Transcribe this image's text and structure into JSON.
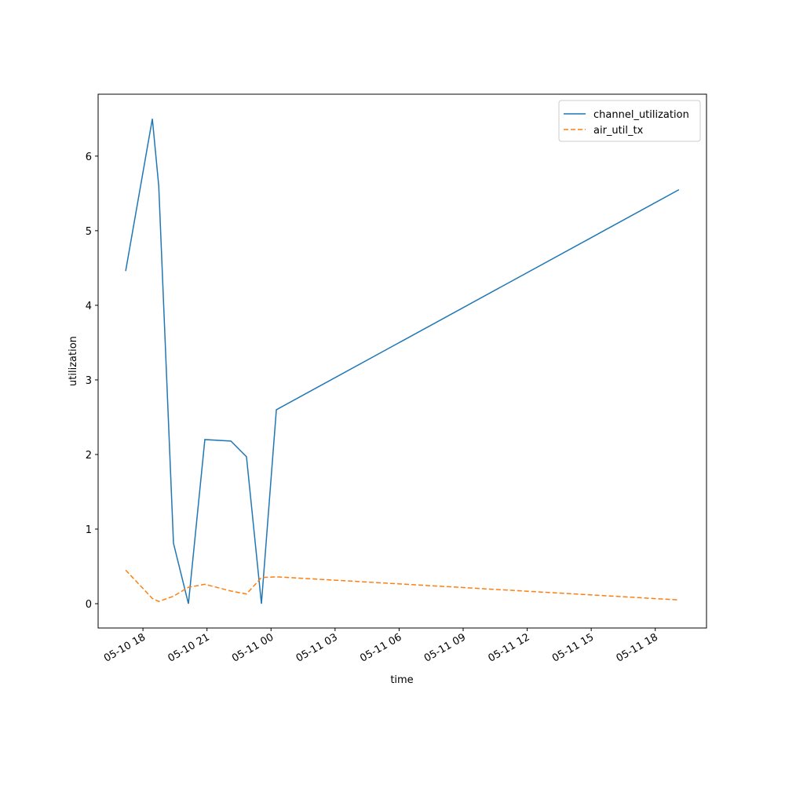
{
  "chart_data": {
    "type": "line",
    "x_label": "time",
    "y_label": "utilization",
    "x": [
      17.19,
      18.44,
      18.74,
      19.43,
      20.13,
      20.9,
      22.12,
      22.85,
      23.55,
      24.25,
      43.11
    ],
    "series": [
      {
        "name": "channel_utilization",
        "color": "#1f77b4",
        "dash": "solid",
        "values": [
          4.46,
          6.5,
          5.6,
          0.81,
          0.0,
          2.2,
          2.18,
          1.97,
          0.0,
          2.6,
          5.55
        ]
      },
      {
        "name": "air_util_tx",
        "color": "#ff7f0e",
        "dash": "dashed",
        "values": [
          0.45,
          0.07,
          0.03,
          0.1,
          0.22,
          0.26,
          0.17,
          0.13,
          0.35,
          0.36,
          0.05
        ]
      }
    ],
    "xlim": [
      15.9,
      44.4
    ],
    "xticks": [
      {
        "value": 18,
        "label": "05-10 18"
      },
      {
        "value": 21,
        "label": "05-10 21"
      },
      {
        "value": 24,
        "label": "05-11 00"
      },
      {
        "value": 27,
        "label": "05-11 03"
      },
      {
        "value": 30,
        "label": "05-11 06"
      },
      {
        "value": 33,
        "label": "05-11 09"
      },
      {
        "value": 36,
        "label": "05-11 12"
      },
      {
        "value": 39,
        "label": "05-11 15"
      },
      {
        "value": 42,
        "label": "05-11 18"
      }
    ],
    "ylim": [
      -0.326,
      6.83
    ],
    "yticks": [
      0,
      1,
      2,
      3,
      4,
      5,
      6
    ],
    "grid": false,
    "legend": "upper right"
  }
}
